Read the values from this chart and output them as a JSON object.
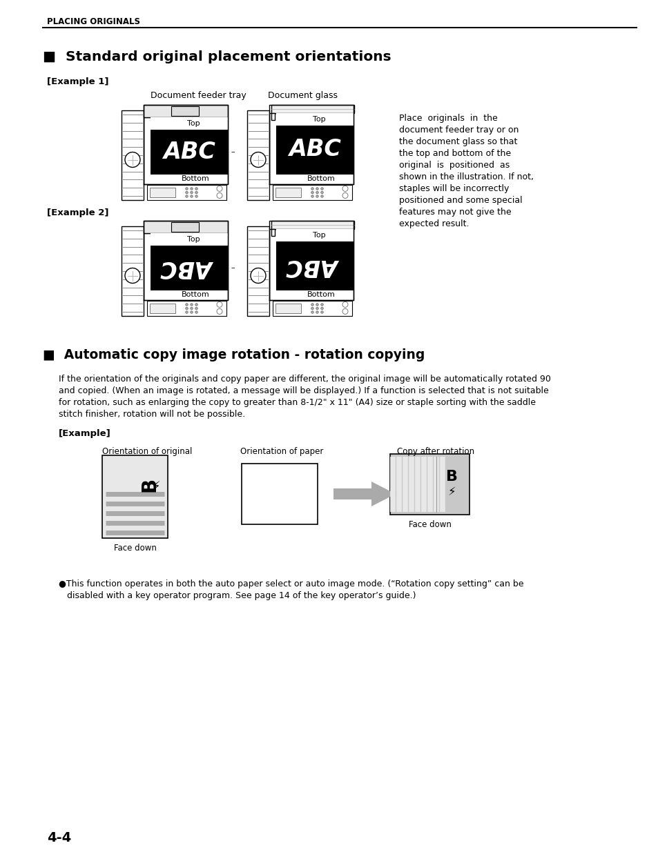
{
  "bg_color": "#ffffff",
  "header_text": "PLACING ORIGINALS",
  "section1_title": "■  Standard original placement orientations",
  "example1_label": "[Example 1]",
  "example2_label": "[Example 2]",
  "doc_feeder_label": "Document feeder tray",
  "doc_glass_label": "Document glass",
  "section2_title": "■  Automatic copy image rotation - rotation copying",
  "section2_body1": "If the orientation of the originals and copy paper are different, the original image will be automatically rotated 90",
  "section2_body2": "and copied. (When an image is rotated, a message will be displayed.) If a function is selected that is not suitable",
  "section2_body3": "for rotation, such as enlarging the copy to greater than 8-1/2\" x 11\" (A4) size or staple sorting with the saddle",
  "section2_body4": "stitch finisher, rotation will not be possible.",
  "example_label": "[Example]",
  "orient_original_label": "Orientation of original",
  "orient_paper_label": "Orientation of paper",
  "copy_after_label": "Copy after rotation",
  "face_down1": "Face down",
  "face_down2": "Face down",
  "bullet_text1": "●This function operates in both the auto paper select or auto image mode. (“Rotation copy setting” can be",
  "bullet_text2": "   disabled with a key operator program. See page 14 of the key operator’s guide.)",
  "right_side_text_lines": [
    "Place  originals  in  the",
    "document feeder tray or on",
    "the document glass so that",
    "the top and bottom of the",
    "original  is  positioned  as",
    "shown in the illustration. If not,",
    "staples will be incorrectly",
    "positioned and some special",
    "features may not give the",
    "expected result."
  ],
  "page_num": "4-4",
  "machine_body_color": "#ffffff",
  "machine_line_color": "#000000",
  "machine_drum_line_color": "#666666",
  "doc_black": "#000000",
  "doc_text_color": "#ffffff",
  "copy_gray": "#c8c8c8"
}
